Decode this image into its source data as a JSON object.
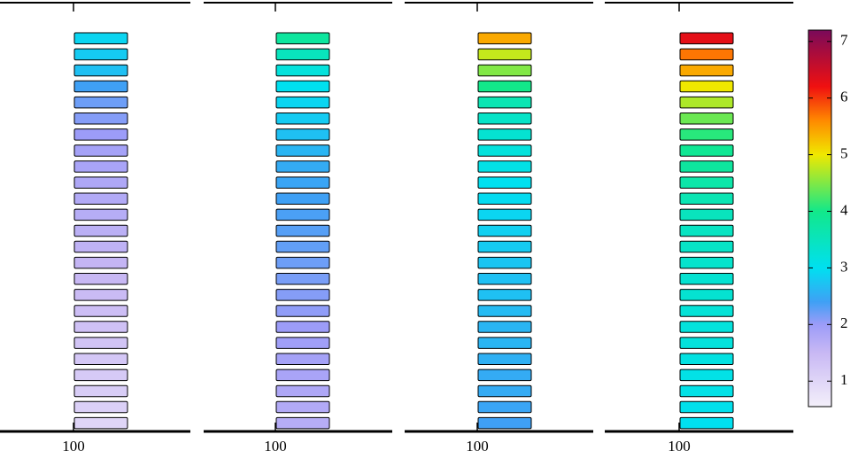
{
  "chart_data": {
    "type": "heatmap",
    "panels": [
      {
        "xticks": [
          100
        ],
        "values": [
          2.9,
          2.8,
          2.7,
          2.4,
          2.2,
          2.1,
          2.0,
          1.9,
          1.85,
          1.8,
          1.75,
          1.7,
          1.65,
          1.6,
          1.55,
          1.5,
          1.45,
          1.4,
          1.35,
          1.3,
          1.25,
          1.2,
          1.15,
          1.1,
          1.0
        ]
      },
      {
        "xticks": [
          100
        ],
        "values": [
          3.8,
          3.5,
          3.2,
          3.0,
          2.9,
          2.8,
          2.7,
          2.6,
          2.5,
          2.45,
          2.4,
          2.35,
          2.3,
          2.25,
          2.2,
          2.15,
          2.1,
          2.05,
          2.0,
          1.95,
          1.9,
          1.85,
          1.8,
          1.75,
          1.7
        ]
      },
      {
        "xticks": [
          100
        ],
        "values": [
          5.4,
          4.8,
          4.5,
          4.0,
          3.6,
          3.4,
          3.3,
          3.2,
          3.1,
          3.0,
          2.95,
          2.9,
          2.85,
          2.8,
          2.75,
          2.7,
          2.7,
          2.65,
          2.6,
          2.6,
          2.55,
          2.5,
          2.5,
          2.45,
          2.4
        ]
      },
      {
        "xticks": [
          100
        ],
        "values": [
          6.3,
          5.7,
          5.4,
          5.0,
          4.7,
          4.4,
          4.1,
          3.9,
          3.8,
          3.7,
          3.6,
          3.5,
          3.45,
          3.4,
          3.35,
          3.3,
          3.3,
          3.25,
          3.2,
          3.2,
          3.15,
          3.1,
          3.1,
          3.05,
          3.0
        ]
      }
    ],
    "colorbar": {
      "lim": [
        0.55,
        7.2
      ],
      "ticks": [
        1,
        2,
        3,
        4,
        5,
        6,
        7
      ]
    },
    "colormap": [
      {
        "value": 0.55,
        "color": "#f4f0fa"
      },
      {
        "value": 1.5,
        "color": "#c8b8f4"
      },
      {
        "value": 2.0,
        "color": "#9c9cf8"
      },
      {
        "value": 2.4,
        "color": "#3fa0f5"
      },
      {
        "value": 3.0,
        "color": "#00e0f0"
      },
      {
        "value": 4.0,
        "color": "#12e88a"
      },
      {
        "value": 5.0,
        "color": "#f0e800"
      },
      {
        "value": 5.6,
        "color": "#ff8a00"
      },
      {
        "value": 6.2,
        "color": "#f01010"
      },
      {
        "value": 7.2,
        "color": "#7a0a5a"
      }
    ]
  }
}
